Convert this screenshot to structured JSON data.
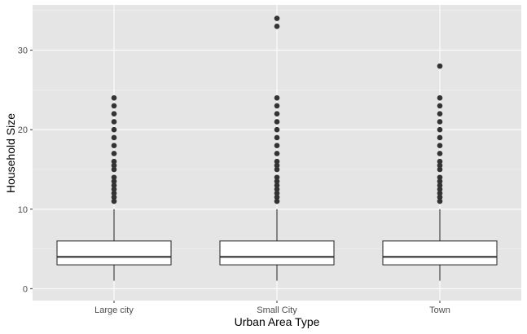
{
  "chart_data": {
    "type": "boxplot",
    "title": "",
    "xlabel": "Urban Area Type",
    "ylabel": "Household Size",
    "categories": [
      "Large city",
      "Small City",
      "Town"
    ],
    "ylim": [
      -1.5,
      35.7
    ],
    "y_ticks": [
      0,
      10,
      20,
      30
    ],
    "grid": true,
    "legend": "none",
    "colors": {
      "panel_background": "#e5e5e5",
      "grid_major": "#ffffff",
      "grid_minor": "#f2f2f2",
      "box_fill": "#ffffff",
      "box_stroke": "#333333",
      "outlier": "#333333"
    },
    "boxes": [
      {
        "category": "Large city",
        "whisker_low": 1,
        "q1": 3,
        "median": 4,
        "q3": 6,
        "whisker_high": 10,
        "outliers": [
          11,
          11.5,
          12,
          12.5,
          13,
          13.5,
          14,
          15,
          15.5,
          16,
          17,
          18,
          19,
          20,
          21,
          22,
          23,
          24
        ]
      },
      {
        "category": "Small City",
        "whisker_low": 1,
        "q1": 3,
        "median": 4,
        "q3": 6,
        "whisker_high": 10,
        "outliers": [
          11,
          11.5,
          12,
          12.5,
          13,
          13.5,
          14,
          15,
          15.5,
          16,
          17,
          18,
          19,
          20,
          21,
          22,
          23,
          24,
          33,
          34
        ]
      },
      {
        "category": "Town",
        "whisker_low": 1,
        "q1": 3,
        "median": 4,
        "q3": 6,
        "whisker_high": 10,
        "outliers": [
          11,
          11.5,
          12,
          12.5,
          13,
          13.5,
          14,
          15,
          15.5,
          16,
          17,
          18,
          19,
          20,
          21,
          22,
          23,
          24,
          28
        ]
      }
    ]
  }
}
